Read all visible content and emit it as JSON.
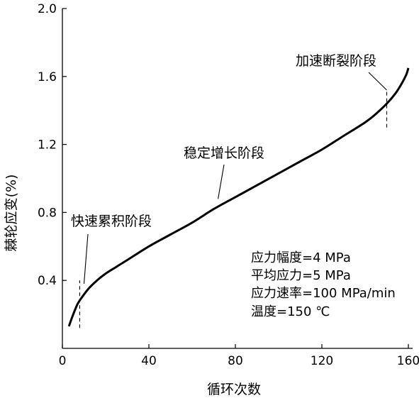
{
  "chart_data": {
    "type": "line",
    "xlabel": "循环次数",
    "ylabel": "棘轮应变(%)",
    "xlim": [
      0,
      160
    ],
    "ylim": [
      0,
      2.0
    ],
    "x_ticks": [
      "0",
      "40",
      "80",
      "120",
      "160"
    ],
    "y_ticks": [
      "0.4",
      "0.8",
      "1.2",
      "1.6",
      "2.0"
    ],
    "grid": false,
    "series": [
      {
        "points": [
          [
            3,
            0.13
          ],
          [
            5,
            0.2
          ],
          [
            7,
            0.26
          ],
          [
            9,
            0.3
          ],
          [
            12,
            0.35
          ],
          [
            16,
            0.4
          ],
          [
            20,
            0.44
          ],
          [
            25,
            0.48
          ],
          [
            30,
            0.52
          ],
          [
            40,
            0.6
          ],
          [
            50,
            0.67
          ],
          [
            60,
            0.74
          ],
          [
            70,
            0.82
          ],
          [
            80,
            0.89
          ],
          [
            90,
            0.96
          ],
          [
            100,
            1.03
          ],
          [
            110,
            1.1
          ],
          [
            120,
            1.17
          ],
          [
            130,
            1.25
          ],
          [
            140,
            1.33
          ],
          [
            145,
            1.38
          ],
          [
            150,
            1.44
          ],
          [
            154,
            1.5
          ],
          [
            157,
            1.56
          ],
          [
            159,
            1.61
          ],
          [
            160,
            1.65
          ]
        ]
      }
    ],
    "stage_labels": [
      {
        "text": "快速累积阶段",
        "anchor": [
          10,
          0.38
        ]
      },
      {
        "text": "稳定增长阶段",
        "anchor": [
          72,
          0.88
        ]
      },
      {
        "text": "加速断裂阶段",
        "anchor": [
          150,
          1.52
        ]
      }
    ],
    "stage_boundaries": [
      {
        "x": 8,
        "y_range": [
          0.12,
          0.4
        ]
      },
      {
        "x": 150,
        "y_range": [
          1.3,
          1.52
        ]
      }
    ],
    "annotations": [
      "应力幅度=4 MPa",
      "平均应力=5 MPa",
      "应力速率=100 MPa/min",
      "温度=150 ℃"
    ]
  }
}
